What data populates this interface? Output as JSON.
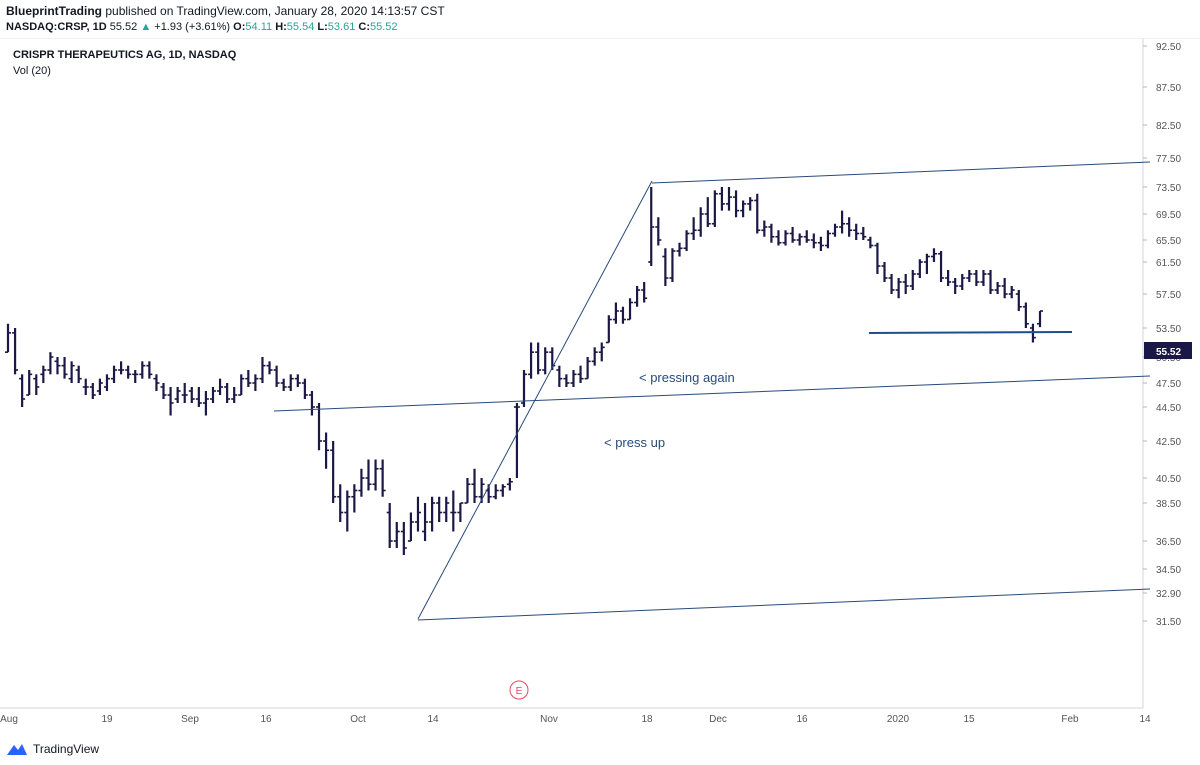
{
  "header": {
    "author": "BlueprintTrading",
    "published_text": "published on TradingView.com, January 28, 2020 14:13:57 CST",
    "symbol": "NASDAQ:CRSP, 1D",
    "last": "55.52",
    "change": "+1.93 (+3.61%)",
    "open_label": "O:",
    "open": "54.11",
    "high_label": "H:",
    "high": "55.54",
    "low_label": "L:",
    "low": "53.61",
    "close_label": "C:",
    "close": "55.52"
  },
  "legend": {
    "title": "CRISPR THERAPEUTICS AG, 1D, NASDAQ",
    "indicator": "Vol (20)"
  },
  "footer": {
    "brand": "TradingView"
  },
  "colors": {
    "bar": "#1c1846",
    "trendline": "#2a4a7a",
    "horizontal": "#1f4e8c",
    "annotation": "#2a4a7a",
    "price_tag_bg": "#1c1846",
    "earnings": "#e8475a",
    "axis_text": "#555555"
  },
  "chart_data": {
    "type": "ohlc",
    "title": "CRISPR THERAPEUTICS AG, 1D, NASDAQ",
    "ylim": [
      29.9,
      94.0
    ],
    "y_ticks": [
      "92.50",
      "87.50",
      "82.50",
      "77.50",
      "73.50",
      "69.50",
      "65.50",
      "61.50",
      "57.50",
      "53.50",
      "50.50",
      "47.50",
      "44.50",
      "42.50",
      "40.50",
      "38.50",
      "36.50",
      "34.50",
      "32.90",
      "31.50"
    ],
    "x_ticks": [
      "Aug",
      "19",
      "Sep",
      "16",
      "Oct",
      "14",
      "Nov",
      "18",
      "Dec",
      "16",
      "2020",
      "15",
      "Feb",
      "14"
    ],
    "last_price": "55.52",
    "bars": [
      [
        51.0,
        54.0,
        51.0,
        53.0
      ],
      [
        53.0,
        53.5,
        48.5,
        49.0
      ],
      [
        48.0,
        48.5,
        44.5,
        45.5
      ],
      [
        46.0,
        49.0,
        46.0,
        48.5
      ],
      [
        48.0,
        48.5,
        46.0,
        47.0
      ],
      [
        48.5,
        49.5,
        47.5,
        49.0
      ],
      [
        49.0,
        51.0,
        48.5,
        50.5
      ],
      [
        50.0,
        50.5,
        48.5,
        49.5
      ],
      [
        49.5,
        50.5,
        48.0,
        48.5
      ],
      [
        48.0,
        50.0,
        47.5,
        49.5
      ],
      [
        49.0,
        49.5,
        47.5,
        48.0
      ],
      [
        47.0,
        48.0,
        46.0,
        47.0
      ],
      [
        47.0,
        47.5,
        45.5,
        46.0
      ],
      [
        46.5,
        48.0,
        46.0,
        47.5
      ],
      [
        47.0,
        48.5,
        46.5,
        48.0
      ],
      [
        48.0,
        49.5,
        47.5,
        49.0
      ],
      [
        49.0,
        50.0,
        48.5,
        49.0
      ],
      [
        49.0,
        49.5,
        48.0,
        48.5
      ],
      [
        48.5,
        49.0,
        47.5,
        48.5
      ],
      [
        48.5,
        50.0,
        48.0,
        49.5
      ],
      [
        49.5,
        50.0,
        48.0,
        48.5
      ],
      [
        48.0,
        48.5,
        46.5,
        47.5
      ],
      [
        47.0,
        47.5,
        45.5,
        46.0
      ],
      [
        46.0,
        47.0,
        44.0,
        45.0
      ],
      [
        45.5,
        47.0,
        45.0,
        46.5
      ],
      [
        46.0,
        47.5,
        45.0,
        46.0
      ],
      [
        46.5,
        47.0,
        45.0,
        45.5
      ],
      [
        45.5,
        47.0,
        44.5,
        45.0
      ],
      [
        45.0,
        46.5,
        44.0,
        45.5
      ],
      [
        45.5,
        47.0,
        45.0,
        46.5
      ],
      [
        46.5,
        48.0,
        46.0,
        47.0
      ],
      [
        47.0,
        47.5,
        45.0,
        45.5
      ],
      [
        45.5,
        47.0,
        45.0,
        46.0
      ],
      [
        46.0,
        48.5,
        46.0,
        48.0
      ],
      [
        48.0,
        49.0,
        47.0,
        47.5
      ],
      [
        47.5,
        48.5,
        46.5,
        48.0
      ],
      [
        48.0,
        50.5,
        47.5,
        49.5
      ],
      [
        49.5,
        50.0,
        48.5,
        49.0
      ],
      [
        49.0,
        49.5,
        47.0,
        47.5
      ],
      [
        47.5,
        48.0,
        46.5,
        47.0
      ],
      [
        47.0,
        48.5,
        46.5,
        48.0
      ],
      [
        48.0,
        48.5,
        47.0,
        47.5
      ],
      [
        47.5,
        48.0,
        45.5,
        46.0
      ],
      [
        46.0,
        46.5,
        44.0,
        44.5
      ],
      [
        44.5,
        45.0,
        42.0,
        42.5
      ],
      [
        42.5,
        43.0,
        41.0,
        42.0
      ],
      [
        42.0,
        42.5,
        38.5,
        39.0
      ],
      [
        39.0,
        40.0,
        37.5,
        38.0
      ],
      [
        38.0,
        39.5,
        37.0,
        39.0
      ],
      [
        39.0,
        40.0,
        38.0,
        39.5
      ],
      [
        39.5,
        41.0,
        39.0,
        40.5
      ],
      [
        40.5,
        41.5,
        39.5,
        40.0
      ],
      [
        40.0,
        41.5,
        39.5,
        41.0
      ],
      [
        41.0,
        41.5,
        39.0,
        39.5
      ],
      [
        38.0,
        38.5,
        36.0,
        36.5
      ],
      [
        36.5,
        37.5,
        36.0,
        37.0
      ],
      [
        37.0,
        37.5,
        35.5,
        36.0
      ],
      [
        36.5,
        38.0,
        36.5,
        37.5
      ],
      [
        37.5,
        39.0,
        37.0,
        38.0
      ],
      [
        37.0,
        38.5,
        36.5,
        37.5
      ],
      [
        37.5,
        39.0,
        37.0,
        38.5
      ],
      [
        38.5,
        39.0,
        37.5,
        38.0
      ],
      [
        38.0,
        39.0,
        37.5,
        38.5
      ],
      [
        38.0,
        39.5,
        37.0,
        38.0
      ],
      [
        38.0,
        38.5,
        37.5,
        38.5
      ],
      [
        38.5,
        40.5,
        38.5,
        40.0
      ],
      [
        40.0,
        41.0,
        38.5,
        39.0
      ],
      [
        39.0,
        40.5,
        38.5,
        40.0
      ],
      [
        39.5,
        40.0,
        38.5,
        39.0
      ],
      [
        39.0,
        40.0,
        38.8,
        39.5
      ],
      [
        39.5,
        40.0,
        39.0,
        39.8
      ],
      [
        40.0,
        40.5,
        39.5,
        40.2
      ],
      [
        44.5,
        45.0,
        40.5,
        44.5
      ],
      [
        45.0,
        49.0,
        44.5,
        48.5
      ],
      [
        48.5,
        52.0,
        48.0,
        51.0
      ],
      [
        51.0,
        52.0,
        48.5,
        49.0
      ],
      [
        49.0,
        51.5,
        48.5,
        51.0
      ],
      [
        51.0,
        51.5,
        49.0,
        49.5
      ],
      [
        49.0,
        49.5,
        47.0,
        48.0
      ],
      [
        48.0,
        48.5,
        47.0,
        47.5
      ],
      [
        47.5,
        49.0,
        47.0,
        48.5
      ],
      [
        48.5,
        49.5,
        47.5,
        48.0
      ],
      [
        48.0,
        50.5,
        48.0,
        50.0
      ],
      [
        50.0,
        51.5,
        49.5,
        51.0
      ],
      [
        51.0,
        52.0,
        50.0,
        51.5
      ],
      [
        52.0,
        55.0,
        52.0,
        54.5
      ],
      [
        54.5,
        56.5,
        54.0,
        55.5
      ],
      [
        55.5,
        56.0,
        54.0,
        54.5
      ],
      [
        54.5,
        57.0,
        54.5,
        56.5
      ],
      [
        56.5,
        58.5,
        56.0,
        58.0
      ],
      [
        58.0,
        59.0,
        56.5,
        57.0
      ],
      [
        61.5,
        73.5,
        61.0,
        67.5
      ],
      [
        67.5,
        69.0,
        64.5,
        65.5
      ],
      [
        62.5,
        64.0,
        58.5,
        59.5
      ],
      [
        59.5,
        64.0,
        59.0,
        63.5
      ],
      [
        63.5,
        65.0,
        62.5,
        64.0
      ],
      [
        64.0,
        67.0,
        63.5,
        66.5
      ],
      [
        66.5,
        69.0,
        65.5,
        67.0
      ],
      [
        67.0,
        70.5,
        66.0,
        69.5
      ],
      [
        69.5,
        72.0,
        67.5,
        68.0
      ],
      [
        68.0,
        73.0,
        67.5,
        72.5
      ],
      [
        72.5,
        73.5,
        70.0,
        71.0
      ],
      [
        71.0,
        73.5,
        70.0,
        72.0
      ],
      [
        72.0,
        73.0,
        69.0,
        70.0
      ],
      [
        70.0,
        71.5,
        69.0,
        71.0
      ],
      [
        71.0,
        72.0,
        70.0,
        71.5
      ],
      [
        71.5,
        72.5,
        66.5,
        67.0
      ],
      [
        67.0,
        68.5,
        66.0,
        67.5
      ],
      [
        67.5,
        68.0,
        65.0,
        66.0
      ],
      [
        66.0,
        67.0,
        64.5,
        65.0
      ],
      [
        65.0,
        67.0,
        64.5,
        66.5
      ],
      [
        66.5,
        67.5,
        65.0,
        65.5
      ],
      [
        65.5,
        66.5,
        64.5,
        66.0
      ],
      [
        66.0,
        67.0,
        65.0,
        65.5
      ],
      [
        65.5,
        66.5,
        64.0,
        65.0
      ],
      [
        65.0,
        66.0,
        63.5,
        64.5
      ],
      [
        64.5,
        67.0,
        64.0,
        66.5
      ],
      [
        66.5,
        68.0,
        66.0,
        67.5
      ],
      [
        67.5,
        70.0,
        66.5,
        68.0
      ],
      [
        68.0,
        69.0,
        66.0,
        67.0
      ],
      [
        67.0,
        68.0,
        65.5,
        66.5
      ],
      [
        66.5,
        67.5,
        65.5,
        66.0
      ],
      [
        65.5,
        66.0,
        64.0,
        64.5
      ],
      [
        64.5,
        65.0,
        60.0,
        61.0
      ],
      [
        61.0,
        61.5,
        59.0,
        59.5
      ],
      [
        59.5,
        60.0,
        57.5,
        58.0
      ],
      [
        58.0,
        59.5,
        57.0,
        59.0
      ],
      [
        59.0,
        60.0,
        57.5,
        58.5
      ],
      [
        58.5,
        60.5,
        58.0,
        60.0
      ],
      [
        60.0,
        62.0,
        59.5,
        61.5
      ],
      [
        61.5,
        63.0,
        60.0,
        62.5
      ],
      [
        62.5,
        64.0,
        61.5,
        63.0
      ],
      [
        63.0,
        63.5,
        59.0,
        59.5
      ],
      [
        59.5,
        60.5,
        58.5,
        59.0
      ],
      [
        59.0,
        59.5,
        57.5,
        58.5
      ],
      [
        58.5,
        60.0,
        58.0,
        59.5
      ],
      [
        59.5,
        60.5,
        59.0,
        60.0
      ],
      [
        60.0,
        60.5,
        58.5,
        59.0
      ],
      [
        59.0,
        60.5,
        58.5,
        60.0
      ],
      [
        60.0,
        60.5,
        57.5,
        58.0
      ],
      [
        58.0,
        59.0,
        57.5,
        58.5
      ],
      [
        58.5,
        59.5,
        57.0,
        57.5
      ],
      [
        57.5,
        58.5,
        57.0,
        58.0
      ],
      [
        57.5,
        58.0,
        55.5,
        56.0
      ],
      [
        56.0,
        56.5,
        53.5,
        54.0
      ],
      [
        53.5,
        54.0,
        52.0,
        52.5
      ],
      [
        54.0,
        55.5,
        53.6,
        55.5
      ]
    ]
  },
  "annotations": {
    "press_up": "<  press up",
    "pressing_again": "< pressing again",
    "earnings_marker": "E"
  }
}
